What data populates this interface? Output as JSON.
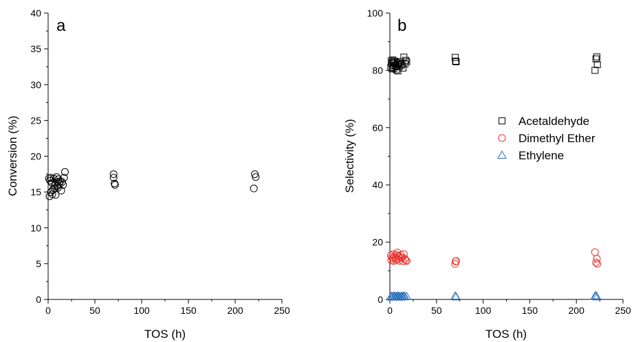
{
  "chart_data": [
    {
      "type": "scatter",
      "panel_label": "a",
      "xlabel": "TOS (h)",
      "ylabel": "Conversion  (%)",
      "xlim": [
        0,
        250
      ],
      "ylim": [
        0,
        40
      ],
      "xticks": [
        "0",
        "50",
        "100",
        "150",
        "200",
        "250"
      ],
      "yticks": [
        "0",
        "5",
        "10",
        "15",
        "20",
        "25",
        "30",
        "35",
        "40"
      ],
      "grid": false,
      "series": [
        {
          "marker": "circle",
          "color": "#000000",
          "points": [
            [
              1,
              16.9
            ],
            [
              1.5,
              14.4
            ],
            [
              2,
              16.6
            ],
            [
              3,
              15.0
            ],
            [
              3,
              17.0
            ],
            [
              4,
              16.3
            ],
            [
              4.5,
              14.7
            ],
            [
              5,
              15.3
            ],
            [
              6,
              16.9
            ],
            [
              6.5,
              15.5
            ],
            [
              7,
              15.9
            ],
            [
              8,
              14.6
            ],
            [
              8,
              16.2
            ],
            [
              9,
              17.1
            ],
            [
              9.5,
              15.8
            ],
            [
              10,
              16.4
            ],
            [
              10.5,
              15.6
            ],
            [
              11,
              16.8
            ],
            [
              12,
              16.1
            ],
            [
              13,
              16.5
            ],
            [
              14,
              15.2
            ],
            [
              15,
              16.4
            ],
            [
              16,
              16.0
            ],
            [
              17,
              17.0
            ],
            [
              18,
              17.8
            ],
            [
              70,
              17.5
            ],
            [
              70,
              17.0
            ],
            [
              71,
              16.2
            ],
            [
              71.5,
              16.0
            ],
            [
              220,
              15.5
            ],
            [
              221,
              17.5
            ],
            [
              222,
              17.1
            ]
          ]
        }
      ]
    },
    {
      "type": "scatter",
      "panel_label": "b",
      "xlabel": "TOS (h)",
      "ylabel": "Selectivity (%)",
      "xlim": [
        0,
        250
      ],
      "ylim": [
        0,
        100
      ],
      "xticks": [
        "0",
        "50",
        "100",
        "150",
        "200",
        "250"
      ],
      "yticks": [
        "0",
        "20",
        "40",
        "60",
        "80",
        "100"
      ],
      "grid": false,
      "legend_position": "right",
      "series": [
        {
          "name": "Acetaldehyde",
          "marker": "square",
          "color": "#000000",
          "points": [
            [
              1,
              81.0
            ],
            [
              1.5,
              83.3
            ],
            [
              2,
              82.5
            ],
            [
              2.5,
              80.5
            ],
            [
              3,
              83.6
            ],
            [
              3.5,
              81.8
            ],
            [
              4,
              82.8
            ],
            [
              4.5,
              80.8
            ],
            [
              5,
              83.2
            ],
            [
              6,
              81.5
            ],
            [
              6.5,
              82.8
            ],
            [
              7,
              80.2
            ],
            [
              8,
              82.0
            ],
            [
              8.5,
              79.8
            ],
            [
              9,
              82.5
            ],
            [
              10,
              81.3
            ],
            [
              11,
              83.0
            ],
            [
              12,
              81.8
            ],
            [
              13,
              82.3
            ],
            [
              14,
              80.8
            ],
            [
              15,
              84.6
            ],
            [
              16,
              82.2
            ],
            [
              17,
              83.5
            ],
            [
              18,
              83.0
            ],
            [
              70,
              84.5
            ],
            [
              70.5,
              83.2
            ],
            [
              71,
              83.0
            ],
            [
              220,
              80.0
            ],
            [
              221,
              84.0
            ],
            [
              222,
              84.7
            ],
            [
              222.5,
              82.0
            ]
          ]
        },
        {
          "name": "Dimethyl Ether",
          "marker": "circle",
          "color": "#e8322e",
          "points": [
            [
              1,
              15.4
            ],
            [
              1.5,
              13.6
            ],
            [
              2,
              14.8
            ],
            [
              3,
              14.3
            ],
            [
              3.5,
              15.8
            ],
            [
              4,
              13.4
            ],
            [
              5,
              15.0
            ],
            [
              6,
              14.4
            ],
            [
              6.5,
              13.8
            ],
            [
              7,
              15.6
            ],
            [
              8,
              16.4
            ],
            [
              8.5,
              14.0
            ],
            [
              9,
              15.2
            ],
            [
              10,
              13.5
            ],
            [
              11,
              14.8
            ],
            [
              12,
              15.5
            ],
            [
              13,
              14.5
            ],
            [
              14,
              13.3
            ],
            [
              15,
              15.9
            ],
            [
              16,
              14.2
            ],
            [
              17,
              13.7
            ],
            [
              18,
              13.4
            ],
            [
              70,
              12.4
            ],
            [
              70.5,
              13.3
            ],
            [
              71,
              13.4
            ],
            [
              220,
              16.5
            ],
            [
              221,
              12.9
            ],
            [
              222,
              14.2
            ],
            [
              222.5,
              12.4
            ]
          ]
        },
        {
          "name": "Ethylene",
          "marker": "triangle",
          "color": "#2a6fbd",
          "points": [
            [
              1,
              0.9
            ],
            [
              2,
              1.1
            ],
            [
              3,
              0.8
            ],
            [
              4,
              1.2
            ],
            [
              5,
              1.0
            ],
            [
              6,
              1.1
            ],
            [
              7,
              0.9
            ],
            [
              8,
              1.2
            ],
            [
              9,
              1.0
            ],
            [
              10,
              1.1
            ],
            [
              11,
              0.8
            ],
            [
              12,
              1.0
            ],
            [
              13,
              1.1
            ],
            [
              14,
              0.9
            ],
            [
              15,
              1.2
            ],
            [
              16,
              1.0
            ],
            [
              18,
              1.0
            ],
            [
              70,
              1.2
            ],
            [
              71,
              0.9
            ],
            [
              220,
              1.1
            ],
            [
              221,
              1.3
            ],
            [
              222,
              0.9
            ]
          ]
        }
      ]
    }
  ]
}
